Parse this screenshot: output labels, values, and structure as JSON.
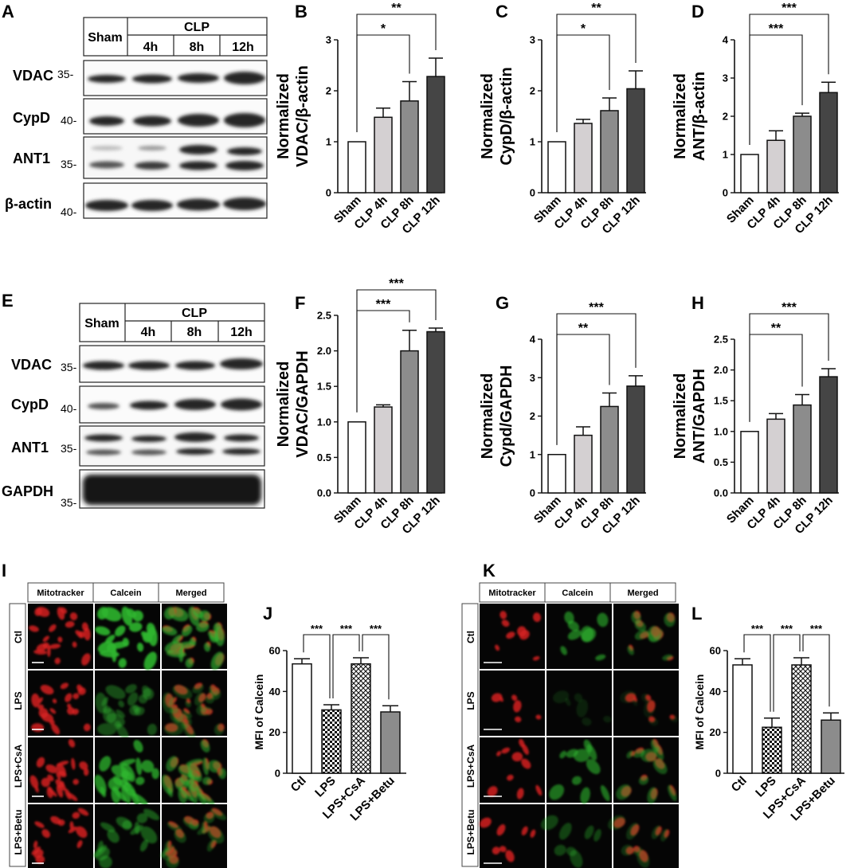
{
  "panels": {
    "A": "A",
    "B": "B",
    "C": "C",
    "D": "D",
    "E": "E",
    "F": "F",
    "G": "G",
    "H": "H",
    "I": "I",
    "J": "J",
    "K": "K",
    "L": "L"
  },
  "blots": [
    {
      "id": "A",
      "header": {
        "first": "Sham",
        "group": "CLP",
        "times": [
          "4h",
          "8h",
          "12h"
        ]
      },
      "rows": [
        {
          "label": "VDAC",
          "mw": "35-"
        },
        {
          "label": "CypD",
          "mw": "40-"
        },
        {
          "label": "ANT1",
          "mw": "35-"
        },
        {
          "label": "β-actin",
          "mw": "40-"
        }
      ]
    },
    {
      "id": "E",
      "header": {
        "first": "Sham",
        "group": "CLP",
        "times": [
          "4h",
          "8h",
          "12h"
        ]
      },
      "rows": [
        {
          "label": "VDAC",
          "mw": "35-"
        },
        {
          "label": "CypD",
          "mw": "40-"
        },
        {
          "label": "ANT1",
          "mw": "35-"
        },
        {
          "label": "GAPDH",
          "mw": "35-"
        }
      ]
    }
  ],
  "micrographs": [
    {
      "id": "I",
      "columns": [
        "Mitotracker",
        "Calcein",
        "Merged"
      ],
      "rows": [
        "Ctl",
        "LPS",
        "LPS+CsA",
        "LPS+Betu"
      ]
    },
    {
      "id": "K",
      "columns": [
        "Mitotracker",
        "Calcein",
        "Merged"
      ],
      "rows": [
        "Ctl",
        "LPS",
        "LPS+CsA",
        "LPS+Betu"
      ]
    }
  ],
  "colors": {
    "white": "#ffffff",
    "light": "#d4d0d2",
    "mid": "#8c8c8c",
    "dark": "#454545",
    "mitotracker": "#d42020",
    "calcein": "#2fb52f",
    "band": "#222222"
  },
  "chart_data": [
    {
      "id": "B",
      "type": "bar",
      "categories": [
        "Sham",
        "CLP 4h",
        "CLP 8h",
        "CLP 12h"
      ],
      "values": [
        1.0,
        1.48,
        1.8,
        2.28
      ],
      "errors": [
        0,
        0.18,
        0.38,
        0.36
      ],
      "ylabel": [
        "Normalized",
        "VDAC/β-actin"
      ],
      "ylim": [
        0,
        3
      ],
      "yticks": [
        0,
        1,
        2,
        3
      ],
      "fills": [
        "white",
        "light",
        "mid",
        "dark"
      ],
      "significance": [
        {
          "from": 0,
          "to": 2,
          "label": "*"
        },
        {
          "from": 0,
          "to": 3,
          "label": "**"
        }
      ]
    },
    {
      "id": "C",
      "type": "bar",
      "categories": [
        "Sham",
        "CLP 4h",
        "CLP 8h",
        "CLP 12h"
      ],
      "values": [
        1.0,
        1.36,
        1.61,
        2.04
      ],
      "errors": [
        0,
        0.08,
        0.25,
        0.35
      ],
      "ylabel": [
        "Normalized",
        "CypD/β-actin"
      ],
      "ylim": [
        0,
        3
      ],
      "yticks": [
        0,
        1,
        2,
        3
      ],
      "fills": [
        "white",
        "light",
        "mid",
        "dark"
      ],
      "significance": [
        {
          "from": 0,
          "to": 2,
          "label": "*"
        },
        {
          "from": 0,
          "to": 3,
          "label": "**"
        }
      ]
    },
    {
      "id": "D",
      "type": "bar",
      "categories": [
        "Sham",
        "CLP 4h",
        "CLP 8h",
        "CLP 12h"
      ],
      "values": [
        1.0,
        1.37,
        2.0,
        2.62
      ],
      "errors": [
        0,
        0.25,
        0.08,
        0.27
      ],
      "ylabel": [
        "Normalized",
        "ANT/β-actin"
      ],
      "ylim": [
        0,
        4
      ],
      "yticks": [
        0,
        1,
        2,
        3,
        4
      ],
      "fills": [
        "white",
        "light",
        "mid",
        "dark"
      ],
      "significance": [
        {
          "from": 0,
          "to": 2,
          "label": "***"
        },
        {
          "from": 0,
          "to": 3,
          "label": "***"
        }
      ]
    },
    {
      "id": "F",
      "type": "bar",
      "categories": [
        "Sham",
        "CLP 4h",
        "CLP 8h",
        "CLP 12h"
      ],
      "values": [
        1.0,
        1.21,
        2.0,
        2.27
      ],
      "errors": [
        0,
        0.03,
        0.29,
        0.05
      ],
      "ylabel": [
        "Normalized",
        "VDAC/GAPDH"
      ],
      "ylim": [
        0,
        2.5
      ],
      "yticks": [
        "0.0",
        "0.5",
        "1.0",
        "1.5",
        "2.0",
        "2.5"
      ],
      "fills": [
        "white",
        "light",
        "mid",
        "dark"
      ],
      "significance": [
        {
          "from": 0,
          "to": 2,
          "label": "***"
        },
        {
          "from": 0,
          "to": 3,
          "label": "***"
        }
      ]
    },
    {
      "id": "G",
      "type": "bar",
      "categories": [
        "Sham",
        "CLP 4h",
        "CLP 8h",
        "CLP 12h"
      ],
      "values": [
        1.0,
        1.5,
        2.25,
        2.78
      ],
      "errors": [
        0,
        0.22,
        0.35,
        0.27
      ],
      "ylabel": [
        "Normalized",
        "Cypd/GAPDH"
      ],
      "ylim": [
        0,
        4
      ],
      "yticks": [
        0,
        1,
        2,
        3,
        4
      ],
      "fills": [
        "white",
        "light",
        "mid",
        "dark"
      ],
      "significance": [
        {
          "from": 0,
          "to": 2,
          "label": "**"
        },
        {
          "from": 0,
          "to": 3,
          "label": "***"
        }
      ]
    },
    {
      "id": "H",
      "type": "bar",
      "categories": [
        "Sham",
        "CLP 4h",
        "CLP 8h",
        "CLP 12h"
      ],
      "values": [
        1.0,
        1.2,
        1.43,
        1.89
      ],
      "errors": [
        0,
        0.09,
        0.17,
        0.13
      ],
      "ylabel": [
        "Normalized",
        "ANT/GAPDH"
      ],
      "ylim": [
        0,
        2.5
      ],
      "yticks": [
        "0.0",
        "0.5",
        "1.0",
        "1.5",
        "2.0",
        "2.5"
      ],
      "fills": [
        "white",
        "light",
        "mid",
        "dark"
      ],
      "significance": [
        {
          "from": 0,
          "to": 2,
          "label": "**"
        },
        {
          "from": 0,
          "to": 3,
          "label": "***"
        }
      ]
    },
    {
      "id": "J",
      "type": "bar",
      "categories": [
        "Ctl",
        "LPS",
        "LPS+CsA",
        "LPS+Betu"
      ],
      "values": [
        53.5,
        31.0,
        53.5,
        30.0
      ],
      "errors": [
        2.5,
        2.5,
        3.0,
        3.0
      ],
      "ylabel": [
        "MFI of  Calcein"
      ],
      "ylim": [
        0,
        60
      ],
      "yticks": [
        0,
        20,
        40,
        60
      ],
      "fills": [
        "white",
        "check",
        "hatch",
        "mid"
      ],
      "significance": [
        {
          "from": 0,
          "to": 1,
          "label": "***"
        },
        {
          "from": 1,
          "to": 2,
          "label": "***"
        },
        {
          "from": 2,
          "to": 3,
          "label": "***"
        }
      ]
    },
    {
      "id": "L",
      "type": "bar",
      "categories": [
        "Ctl",
        "LPS",
        "LPS+CsA",
        "LPS+Betu"
      ],
      "values": [
        53.0,
        22.5,
        53.0,
        26.0
      ],
      "errors": [
        3.0,
        4.5,
        3.5,
        3.5
      ],
      "ylabel": [
        "MFI of  Calcein"
      ],
      "ylim": [
        0,
        60
      ],
      "yticks": [
        0,
        20,
        40,
        60
      ],
      "fills": [
        "white",
        "check",
        "hatch",
        "mid"
      ],
      "significance": [
        {
          "from": 0,
          "to": 1,
          "label": "***"
        },
        {
          "from": 1,
          "to": 2,
          "label": "***"
        },
        {
          "from": 2,
          "to": 3,
          "label": "***"
        }
      ]
    }
  ]
}
